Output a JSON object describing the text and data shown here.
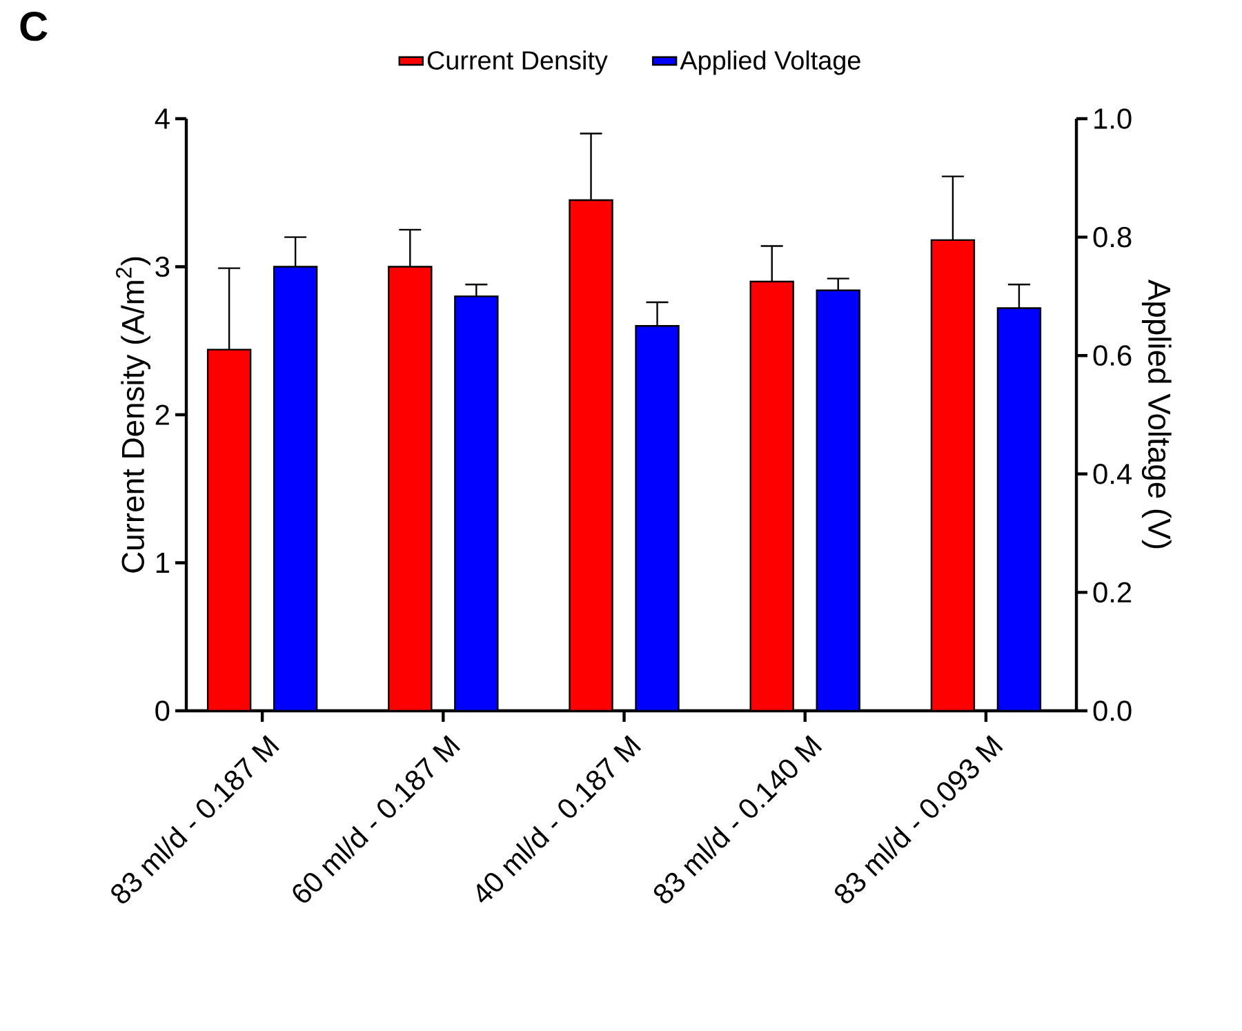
{
  "chart_data": {
    "type": "bar",
    "categories": [
      "83 ml/d - 0.187 M",
      "60 ml/d - 0.187 M",
      "40 ml/d - 0.187 M",
      "83 ml/d - 0.140 M",
      "83 ml/d - 0.093 M"
    ],
    "series": [
      {
        "name": "Current Density",
        "color": "#ff0000",
        "values": [
          2.44,
          3.0,
          3.45,
          2.9,
          3.18
        ],
        "errors": [
          0.55,
          0.25,
          0.45,
          0.24,
          0.43
        ]
      },
      {
        "name": "Applied Voltage",
        "color": "#0000ff",
        "axis": "y2",
        "values": [
          0.75,
          0.7,
          0.65,
          0.71,
          0.68
        ],
        "errors": [
          0.05,
          0.02,
          0.04,
          0.02,
          0.04
        ]
      }
    ],
    "ylabel": "Current Density (A/m$^{2}$)",
    "y2label": "Applied Voltage (V)",
    "ylim": [
      0,
      4
    ],
    "yticks": [
      0,
      1,
      2,
      3,
      4
    ],
    "y2lim": [
      0,
      1.0
    ],
    "y2ticks": [
      {
        "value": 0,
        "label": "0.0"
      },
      {
        "value": 0.2,
        "label": "0.2"
      },
      {
        "value": 0.4,
        "label": "0.4"
      },
      {
        "value": 0.6,
        "label": "0.6"
      },
      {
        "value": 0.8,
        "label": "0.8"
      },
      {
        "value": 1.0,
        "label": "1.0"
      }
    ],
    "legend": "top",
    "grid": false,
    "annotations": [
      "C"
    ]
  }
}
